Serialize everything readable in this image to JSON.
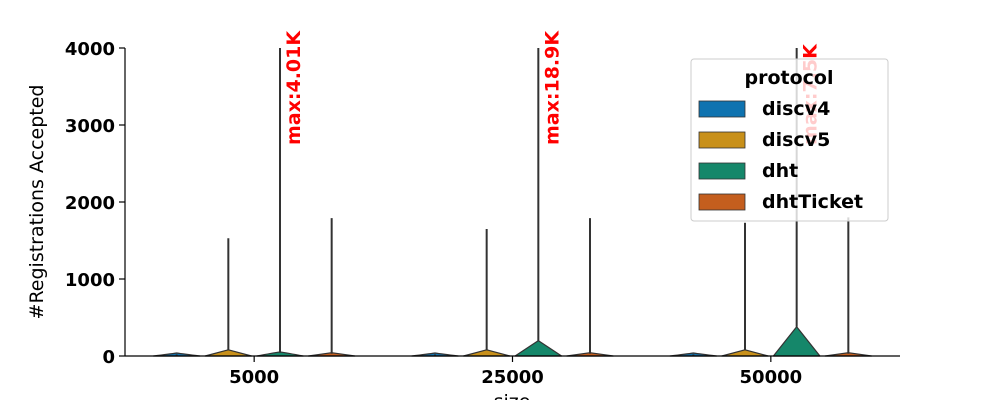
{
  "chart_data": {
    "type": "violin",
    "title": "",
    "xlabel": "size",
    "ylabel": "#Registrations Accepted",
    "ylim": [
      0,
      4000
    ],
    "yticks": [
      0,
      1000,
      2000,
      3000,
      4000
    ],
    "categories": [
      "5000",
      "25000",
      "50000"
    ],
    "legend": {
      "title": "protocol",
      "position": "top-right"
    },
    "series": [
      {
        "name": "discv4",
        "color": "#0f73b0",
        "values": [
          {
            "max": 20,
            "peak": 0,
            "halfwidth": 0.45
          },
          {
            "max": 20,
            "peak": 0,
            "halfwidth": 0.45
          },
          {
            "max": 20,
            "peak": 0,
            "halfwidth": 0.45
          }
        ]
      },
      {
        "name": "discv5",
        "color": "#c8901a",
        "values": [
          {
            "max": 1530,
            "peak": 80,
            "halfwidth": 0.45
          },
          {
            "max": 1650,
            "peak": 80,
            "halfwidth": 0.45
          },
          {
            "max": 1730,
            "peak": 80,
            "halfwidth": 0.45
          }
        ]
      },
      {
        "name": "dht",
        "color": "#15876a",
        "values": [
          {
            "max": 4010,
            "peak": 40,
            "halfwidth": 0.45
          },
          {
            "max": 18900,
            "peak": 200,
            "halfwidth": 0.45
          },
          {
            "max": 7500,
            "peak": 380,
            "halfwidth": 0.45
          }
        ]
      },
      {
        "name": "dhtTicket",
        "color": "#c45e1e",
        "values": [
          {
            "max": 1790,
            "peak": 30,
            "halfwidth": 0.45
          },
          {
            "max": 1790,
            "peak": 30,
            "halfwidth": 0.45
          },
          {
            "max": 1800,
            "peak": 30,
            "halfwidth": 0.45
          }
        ]
      }
    ],
    "annotations": [
      {
        "category": "5000",
        "series": "dht",
        "text": "max:4.01K"
      },
      {
        "category": "25000",
        "series": "dht",
        "text": "max:18.9K"
      },
      {
        "category": "50000",
        "series": "dht",
        "text": "max:7.5K"
      }
    ]
  }
}
